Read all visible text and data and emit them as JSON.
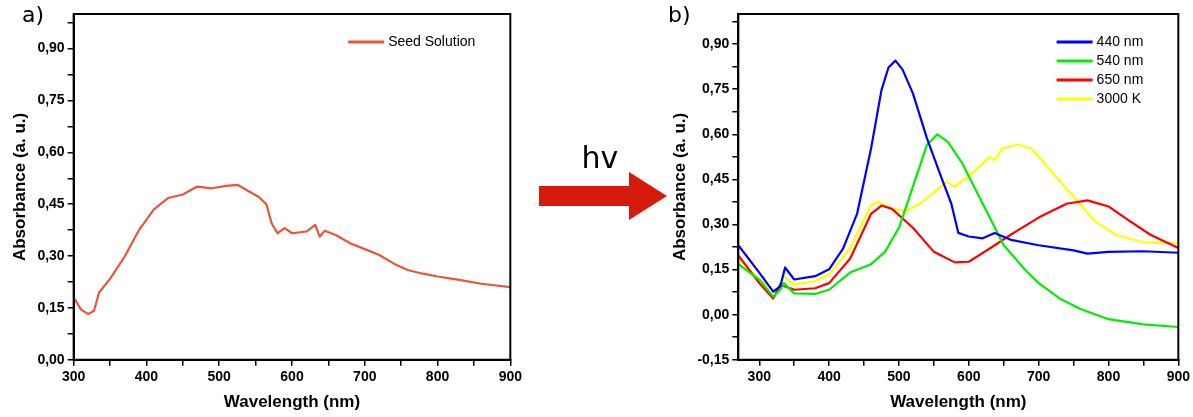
{
  "chart_data": [
    {
      "type": "line",
      "title": "a)",
      "xlabel": "Wavelength (nm)",
      "ylabel": "Absorbance (a. u.)",
      "legend": "top right",
      "grid": false,
      "marker": "none",
      "line_style": "solid",
      "xlim": [
        300,
        900
      ],
      "ylim": [
        0,
        1.0
      ],
      "xticks": [
        300,
        {
          "value": 350,
          "label": null
        },
        400,
        {
          "value": 450,
          "label": null
        },
        500,
        {
          "value": 550,
          "label": null
        },
        600,
        {
          "value": 650,
          "label": null
        },
        700,
        {
          "value": 750,
          "label": null
        },
        800,
        {
          "value": 850,
          "label": null
        },
        900
      ],
      "yticks": [
        {
          "value": 0,
          "label": "0,00"
        },
        {
          "value": 0.075,
          "label": null
        },
        {
          "value": 0.15,
          "label": "0,15"
        },
        {
          "value": 0.225,
          "label": null
        },
        {
          "value": 0.3,
          "label": "0,30"
        },
        {
          "value": 0.375,
          "label": null
        },
        {
          "value": 0.45,
          "label": "0,45"
        },
        {
          "value": 0.525,
          "label": null
        },
        {
          "value": 0.6,
          "label": "0,60"
        },
        {
          "value": 0.675,
          "label": null
        },
        {
          "value": 0.75,
          "label": "0,75"
        },
        {
          "value": 0.825,
          "label": null
        },
        {
          "value": 0.9,
          "label": "0,90"
        },
        {
          "value": 0.975,
          "label": null
        }
      ],
      "series": [
        {
          "name": "Seed Solution",
          "color": "#e8553a",
          "x": [
            300,
            310,
            320,
            328,
            335,
            350,
            370,
            390,
            410,
            430,
            450,
            470,
            490,
            510,
            525,
            540,
            555,
            565,
            572,
            580,
            590,
            600,
            620,
            632,
            638,
            645,
            660,
            680,
            700,
            720,
            740,
            760,
            780,
            800,
            830,
            860,
            900
          ],
          "values": [
            0.181,
            0.146,
            0.132,
            0.142,
            0.195,
            0.234,
            0.298,
            0.376,
            0.434,
            0.468,
            0.478,
            0.501,
            0.496,
            0.503,
            0.506,
            0.488,
            0.47,
            0.449,
            0.395,
            0.366,
            0.381,
            0.366,
            0.371,
            0.39,
            0.356,
            0.373,
            0.361,
            0.337,
            0.32,
            0.303,
            0.278,
            0.259,
            0.249,
            0.241,
            0.231,
            0.22,
            0.21
          ]
        }
      ]
    },
    {
      "type": "other",
      "annotations": [
        "hv"
      ]
    },
    {
      "type": "line",
      "title": "b)",
      "xlabel": "Wavelength (nm)",
      "ylabel": "Absorbance (a. u.)",
      "legend": "top right",
      "grid": false,
      "marker": "none",
      "line_style": "solid",
      "xlim": [
        270,
        900
      ],
      "ylim": [
        -0.15,
        1.0
      ],
      "xticks": [
        300,
        {
          "value": 350,
          "label": null
        },
        400,
        {
          "value": 450,
          "label": null
        },
        500,
        {
          "value": 550,
          "label": null
        },
        600,
        {
          "value": 650,
          "label": null
        },
        700,
        {
          "value": 750,
          "label": null
        },
        800,
        {
          "value": 850,
          "label": null
        },
        900
      ],
      "yticks": [
        {
          "value": -0.15,
          "label": "-0,15"
        },
        {
          "value": -0.075,
          "label": null
        },
        {
          "value": 0,
          "label": "0,00"
        },
        {
          "value": 0.075,
          "label": null
        },
        {
          "value": 0.15,
          "label": "0,15"
        },
        {
          "value": 0.225,
          "label": null
        },
        {
          "value": 0.3,
          "label": "0,30"
        },
        {
          "value": 0.375,
          "label": null
        },
        {
          "value": 0.45,
          "label": "0,45"
        },
        {
          "value": 0.525,
          "label": null
        },
        {
          "value": 0.6,
          "label": "0,60"
        },
        {
          "value": 0.675,
          "label": null
        },
        {
          "value": 0.75,
          "label": "0,75"
        },
        {
          "value": 0.825,
          "label": null
        },
        {
          "value": 0.9,
          "label": "0,90"
        },
        {
          "value": 0.975,
          "label": null
        }
      ],
      "series": [
        {
          "name": "440 nm",
          "color": "#0000ff",
          "x": [
            270,
            300,
            320,
            330,
            337,
            350,
            380,
            400,
            420,
            440,
            460,
            475,
            485,
            495,
            505,
            520,
            540,
            560,
            575,
            585,
            600,
            620,
            637,
            660,
            700,
            750,
            770,
            800,
            850,
            900
          ],
          "values": [
            0.231,
            0.14,
            0.077,
            0.094,
            0.157,
            0.117,
            0.128,
            0.151,
            0.22,
            0.335,
            0.552,
            0.747,
            0.822,
            0.845,
            0.816,
            0.736,
            0.587,
            0.461,
            0.369,
            0.272,
            0.26,
            0.254,
            0.272,
            0.249,
            0.231,
            0.214,
            0.203,
            0.209,
            0.211,
            0.206
          ]
        },
        {
          "name": "540 nm",
          "color": "#00ee00",
          "x": [
            270,
            300,
            320,
            330,
            335,
            350,
            380,
            400,
            430,
            460,
            480,
            500,
            520,
            540,
            555,
            570,
            590,
            610,
            630,
            650,
            680,
            700,
            730,
            760,
            800,
            850,
            900
          ],
          "values": [
            0.168,
            0.117,
            0.06,
            0.083,
            0.105,
            0.071,
            0.069,
            0.083,
            0.14,
            0.168,
            0.209,
            0.289,
            0.426,
            0.564,
            0.6,
            0.575,
            0.506,
            0.415,
            0.323,
            0.231,
            0.151,
            0.105,
            0.054,
            0.019,
            -0.015,
            -0.032,
            -0.041
          ]
        },
        {
          "name": "650 nm",
          "color": "#ff0000",
          "x": [
            270,
            300,
            320,
            330,
            350,
            380,
            400,
            430,
            460,
            475,
            490,
            520,
            550,
            580,
            600,
            630,
            660,
            700,
            740,
            770,
            800,
            830,
            860,
            900
          ],
          "values": [
            0.197,
            0.105,
            0.054,
            0.1,
            0.083,
            0.088,
            0.105,
            0.186,
            0.335,
            0.363,
            0.352,
            0.289,
            0.209,
            0.174,
            0.176,
            0.22,
            0.266,
            0.323,
            0.369,
            0.38,
            0.36,
            0.312,
            0.266,
            0.222
          ]
        },
        {
          "name": "3000 K",
          "color": "#ffff00",
          "x": [
            270,
            300,
            325,
            335,
            350,
            380,
            400,
            430,
            460,
            470,
            490,
            510,
            530,
            560,
            568,
            580,
            600,
            630,
            637,
            648,
            670,
            690,
            720,
            750,
            780,
            810,
            850,
            900
          ],
          "values": [
            0.186,
            0.117,
            0.077,
            0.128,
            0.1,
            0.111,
            0.134,
            0.22,
            0.363,
            0.375,
            0.352,
            0.344,
            0.369,
            0.426,
            0.441,
            0.426,
            0.461,
            0.524,
            0.513,
            0.552,
            0.566,
            0.552,
            0.472,
            0.392,
            0.312,
            0.266,
            0.241,
            0.237
          ]
        }
      ]
    }
  ]
}
